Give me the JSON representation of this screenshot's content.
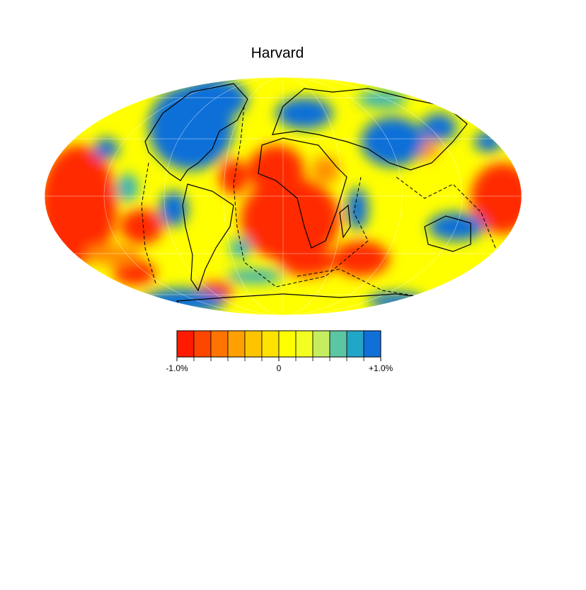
{
  "title": "Harvard",
  "colorbar": {
    "lim": [
      -1,
      1
    ],
    "colors": [
      "#ff1a00",
      "#ff4600",
      "#ff7400",
      "#ffa000",
      "#ffc400",
      "#ffe200",
      "#ffff00",
      "#f2ff20",
      "#c6ec60",
      "#5cc6a2",
      "#22a6c8",
      "#1070d8"
    ],
    "ticks": [
      {
        "value": -1,
        "label": "-1.0%"
      },
      {
        "value": 0,
        "label": "0"
      },
      {
        "value": 1,
        "label": "+1.0%"
      }
    ]
  }
}
